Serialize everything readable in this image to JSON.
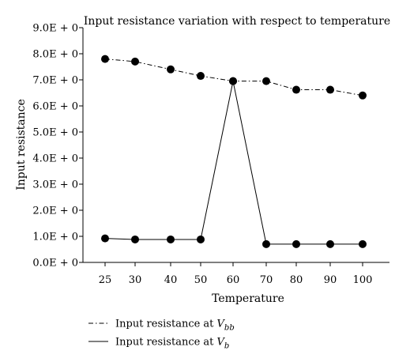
{
  "chart_data": {
    "type": "line",
    "title": "Input resistance variation with respect to temperature",
    "xlabel": "Temperature",
    "ylabel": "Input resistance",
    "categories": [
      "25",
      "30",
      "40",
      "50",
      "60",
      "70",
      "80",
      "90",
      "100"
    ],
    "y_tick_labels": [
      {
        "value": 0,
        "label": "0.0E + 0"
      },
      {
        "value": 1,
        "label": "1.0E + 0"
      },
      {
        "value": 2,
        "label": "2.0E + 0"
      },
      {
        "value": 3,
        "label": "3.0E + 0"
      },
      {
        "value": 4,
        "label": "4.0E + 0"
      },
      {
        "value": 5,
        "label": "5.0E + 0"
      },
      {
        "value": 6,
        "label": "6.0E + 0"
      },
      {
        "value": 7,
        "label": "7.0E + 0"
      },
      {
        "value": 8,
        "label": "8.0E + 0"
      },
      {
        "value": 9,
        "label": "9.0E + 0"
      }
    ],
    "ylim": [
      0,
      9
    ],
    "grid": false,
    "legend_position": "bottom",
    "series": [
      {
        "name_prefix": "Input resistance at ",
        "name_var": "V",
        "name_sub": "bb",
        "line_style": "dash-dot",
        "values": [
          7.8,
          7.7,
          7.4,
          7.15,
          6.95,
          6.95,
          6.62,
          6.62,
          6.4
        ]
      },
      {
        "name_prefix": "Input resistance at ",
        "name_var": "V",
        "name_sub": "b",
        "line_style": "solid",
        "values": [
          0.92,
          0.88,
          0.88,
          0.88,
          6.95,
          0.7,
          0.7,
          0.7,
          0.7
        ]
      }
    ]
  },
  "colors": {
    "line": "#000000",
    "marker": "#000000",
    "background": "#ffffff"
  }
}
